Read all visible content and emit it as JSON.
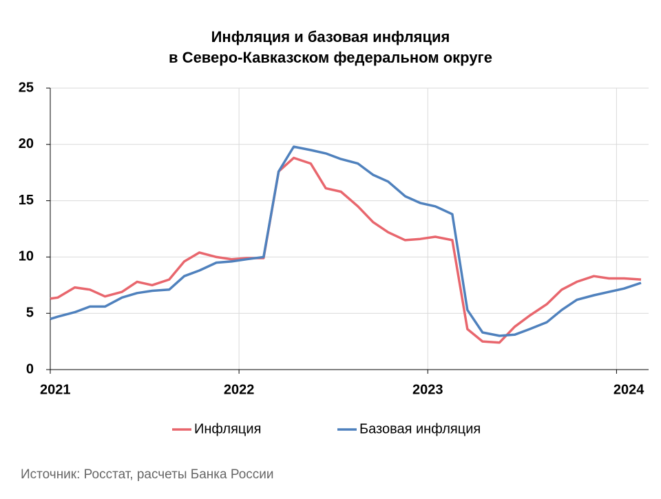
{
  "chart_data": {
    "type": "line",
    "title": "Инфляция и базовая инфляция",
    "subtitle": "в Северо-Кавказском федеральном округе",
    "source": "Источник: Росстат, расчеты Банка России",
    "x": [
      2021,
      2021.04,
      2021.13,
      2021.21,
      2021.29,
      2021.38,
      2021.46,
      2021.54,
      2021.63,
      2021.71,
      2021.79,
      2021.88,
      2021.96,
      2022.04,
      2022.13,
      2022.21,
      2022.29,
      2022.38,
      2022.46,
      2022.54,
      2022.63,
      2022.71,
      2022.79,
      2022.88,
      2022.96,
      2023.04,
      2023.13,
      2023.21,
      2023.29,
      2023.38,
      2023.46,
      2023.54,
      2023.63,
      2023.71,
      2023.79,
      2023.88,
      2023.96,
      2024.04,
      2024.13
    ],
    "series": [
      {
        "name": "Инфляция",
        "color": "#e8666d",
        "values": [
          6.3,
          6.4,
          7.3,
          7.1,
          6.5,
          6.9,
          7.8,
          7.5,
          8.0,
          9.6,
          10.4,
          10.0,
          9.8,
          9.9,
          9.9,
          17.6,
          18.8,
          18.3,
          16.1,
          15.8,
          14.5,
          13.1,
          12.2,
          11.5,
          11.6,
          11.8,
          11.5,
          3.6,
          2.5,
          2.4,
          3.8,
          4.8,
          5.8,
          7.1,
          7.8,
          8.3,
          8.1,
          8.1,
          8.0
        ]
      },
      {
        "name": "Базовая инфляция",
        "color": "#4f81bd",
        "values": [
          4.5,
          4.7,
          5.1,
          5.6,
          5.6,
          6.4,
          6.8,
          7.0,
          7.1,
          8.3,
          8.8,
          9.5,
          9.6,
          9.8,
          10.0,
          17.6,
          19.8,
          19.5,
          19.2,
          18.7,
          18.3,
          17.3,
          16.7,
          15.4,
          14.8,
          14.5,
          13.8,
          5.3,
          3.3,
          3.0,
          3.1,
          3.6,
          4.2,
          5.3,
          6.2,
          6.6,
          6.9,
          7.2,
          7.7
        ]
      }
    ],
    "xlim": [
      2021,
      2024.17
    ],
    "xticks": [
      2021,
      2022,
      2023,
      2024
    ],
    "ylim": [
      0,
      25
    ],
    "yticks": [
      0,
      5,
      10,
      15,
      20,
      25
    ],
    "grid": true,
    "legend": "bottom"
  }
}
